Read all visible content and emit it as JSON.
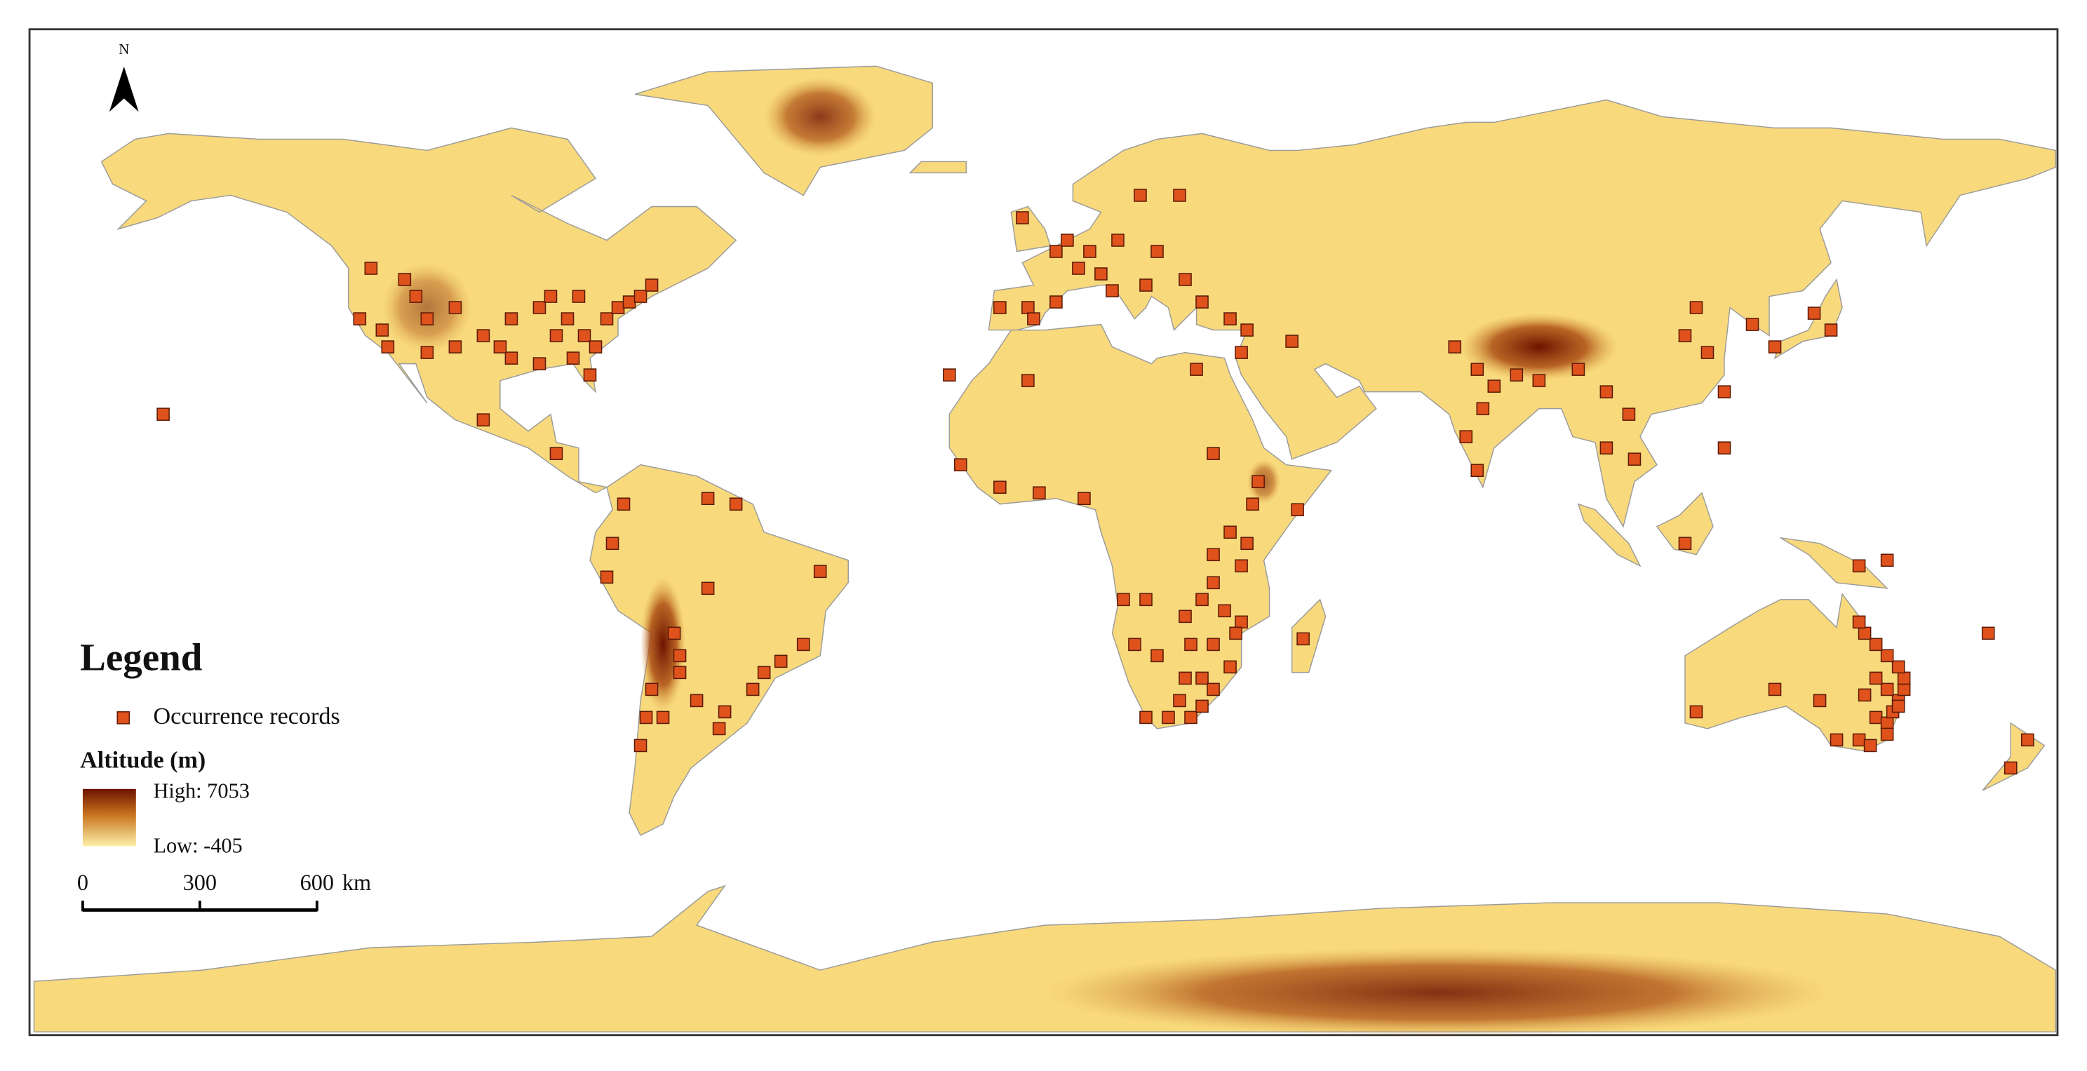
{
  "north_label": "N",
  "legend": {
    "title": "Legend",
    "occurrence_label": "Occurrence records",
    "altitude_title": "Altitude (m)",
    "high_label": "High: 7053",
    "low_label": "Low:  -405"
  },
  "scale_bar": {
    "ticks": [
      0,
      300,
      600
    ],
    "unit": "km"
  },
  "occurrences": [
    [
      -120,
      47
    ],
    [
      -114,
      45
    ],
    [
      -112,
      42
    ],
    [
      -105,
      40
    ],
    [
      -110,
      38
    ],
    [
      -118,
      36
    ],
    [
      -122,
      38
    ],
    [
      -100,
      35
    ],
    [
      -95,
      38
    ],
    [
      -90,
      40
    ],
    [
      -88,
      42
    ],
    [
      -85,
      38
    ],
    [
      -82,
      35
    ],
    [
      -80,
      33
    ],
    [
      -78,
      38
    ],
    [
      -76,
      40
    ],
    [
      -74,
      41
    ],
    [
      -72,
      42
    ],
    [
      -70,
      44
    ],
    [
      -83,
      42
    ],
    [
      -87,
      35
    ],
    [
      -84,
      31
    ],
    [
      -81,
      28
    ],
    [
      -90,
      30
    ],
    [
      -95,
      31
    ],
    [
      -97,
      33
    ],
    [
      -105,
      33
    ],
    [
      -110,
      32
    ],
    [
      -117,
      33
    ],
    [
      -87,
      14
    ],
    [
      -100,
      20
    ],
    [
      -157,
      21
    ],
    [
      -75,
      5
    ],
    [
      -77,
      -2
    ],
    [
      -78,
      -8
    ],
    [
      -60,
      6
    ],
    [
      -55,
      5
    ],
    [
      -60,
      -10
    ],
    [
      -40,
      -7
    ],
    [
      -43,
      -20
    ],
    [
      -47,
      -23
    ],
    [
      -50,
      -25
    ],
    [
      -52,
      -28
    ],
    [
      -57,
      -32
    ],
    [
      -58,
      -35
    ],
    [
      -62,
      -30
    ],
    [
      -65,
      -25
    ],
    [
      -65,
      -22
    ],
    [
      -68,
      -33
    ],
    [
      -71,
      -33
    ],
    [
      -72,
      -38
    ],
    [
      -70,
      -28
    ],
    [
      -66,
      -18
    ],
    [
      -4,
      56
    ],
    [
      2,
      50
    ],
    [
      4,
      52
    ],
    [
      8,
      50
    ],
    [
      13,
      52
    ],
    [
      17,
      60
    ],
    [
      24,
      60
    ],
    [
      20,
      50
    ],
    [
      25,
      45
    ],
    [
      18,
      44
    ],
    [
      12,
      43
    ],
    [
      -3,
      40
    ],
    [
      -8,
      40
    ],
    [
      2,
      41
    ],
    [
      28,
      41
    ],
    [
      33,
      38
    ],
    [
      36,
      36
    ],
    [
      35,
      32
    ],
    [
      44,
      34
    ],
    [
      -17,
      28
    ],
    [
      27,
      29
    ],
    [
      -2,
      38
    ],
    [
      10,
      46
    ],
    [
      6,
      47
    ],
    [
      -3,
      27
    ],
    [
      -15,
      12
    ],
    [
      -8,
      8
    ],
    [
      -1,
      7
    ],
    [
      7,
      6
    ],
    [
      30,
      14
    ],
    [
      38,
      9
    ],
    [
      37,
      5
    ],
    [
      45,
      4
    ],
    [
      33,
      0
    ],
    [
      36,
      -2
    ],
    [
      30,
      -4
    ],
    [
      35,
      -6
    ],
    [
      30,
      -9
    ],
    [
      28,
      -12
    ],
    [
      32,
      -14
    ],
    [
      35,
      -16
    ],
    [
      25,
      -15
    ],
    [
      18,
      -12
    ],
    [
      14,
      -12
    ],
    [
      16,
      -20
    ],
    [
      20,
      -22
    ],
    [
      26,
      -20
    ],
    [
      30,
      -20
    ],
    [
      33,
      -24
    ],
    [
      25,
      -26
    ],
    [
      28,
      -26
    ],
    [
      30,
      -28
    ],
    [
      18,
      -33
    ],
    [
      22,
      -33
    ],
    [
      26,
      -33
    ],
    [
      28,
      -31
    ],
    [
      46,
      -19
    ],
    [
      34,
      -18
    ],
    [
      24,
      -30
    ],
    [
      77,
      29
    ],
    [
      73,
      33
    ],
    [
      78,
      22
    ],
    [
      75,
      17
    ],
    [
      77,
      11
    ],
    [
      80,
      26
    ],
    [
      88,
      27
    ],
    [
      84,
      28
    ],
    [
      95,
      29
    ],
    [
      100,
      25
    ],
    [
      105,
      13
    ],
    [
      100,
      15
    ],
    [
      104,
      21
    ],
    [
      116,
      40
    ],
    [
      114,
      35
    ],
    [
      118,
      32
    ],
    [
      121,
      25
    ],
    [
      126,
      37
    ],
    [
      130,
      33
    ],
    [
      140,
      36
    ],
    [
      137,
      39
    ],
    [
      114,
      -2
    ],
    [
      121,
      15
    ],
    [
      145,
      -6
    ],
    [
      150,
      -5
    ],
    [
      116,
      -32
    ],
    [
      130,
      -28
    ],
    [
      138,
      -30
    ],
    [
      141,
      -37
    ],
    [
      145,
      -37
    ],
    [
      147,
      -38
    ],
    [
      148,
      -33
    ],
    [
      150,
      -34
    ],
    [
      151,
      -32
    ],
    [
      152,
      -30
    ],
    [
      153,
      -28
    ],
    [
      153,
      -26
    ],
    [
      152,
      -24
    ],
    [
      150,
      -22
    ],
    [
      148,
      -20
    ],
    [
      146,
      -18
    ],
    [
      145,
      -16
    ],
    [
      150,
      -28
    ],
    [
      148,
      -26
    ],
    [
      146,
      -29
    ],
    [
      150,
      -36
    ],
    [
      152,
      -31
    ],
    [
      175,
      -37
    ],
    [
      172,
      -42
    ],
    [
      168,
      -18
    ]
  ]
}
